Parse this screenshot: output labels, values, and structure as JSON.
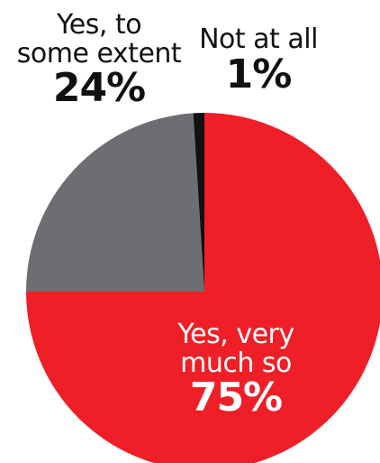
{
  "chart_data": {
    "type": "pie",
    "title": "",
    "slices": [
      {
        "label": "Yes, very much so",
        "label_lines": [
          "Yes, very",
          "much so"
        ],
        "value": 75,
        "value_label": "75%",
        "color": "#ee1f27"
      },
      {
        "label": "Yes, to some extent",
        "label_lines": [
          "Yes, to",
          "some extent"
        ],
        "value": 24,
        "value_label": "24%",
        "color": "#6d6e71"
      },
      {
        "label": "Not at all",
        "label_lines": [
          "Not at all"
        ],
        "value": 1,
        "value_label": "1%",
        "color": "#111111"
      }
    ]
  }
}
